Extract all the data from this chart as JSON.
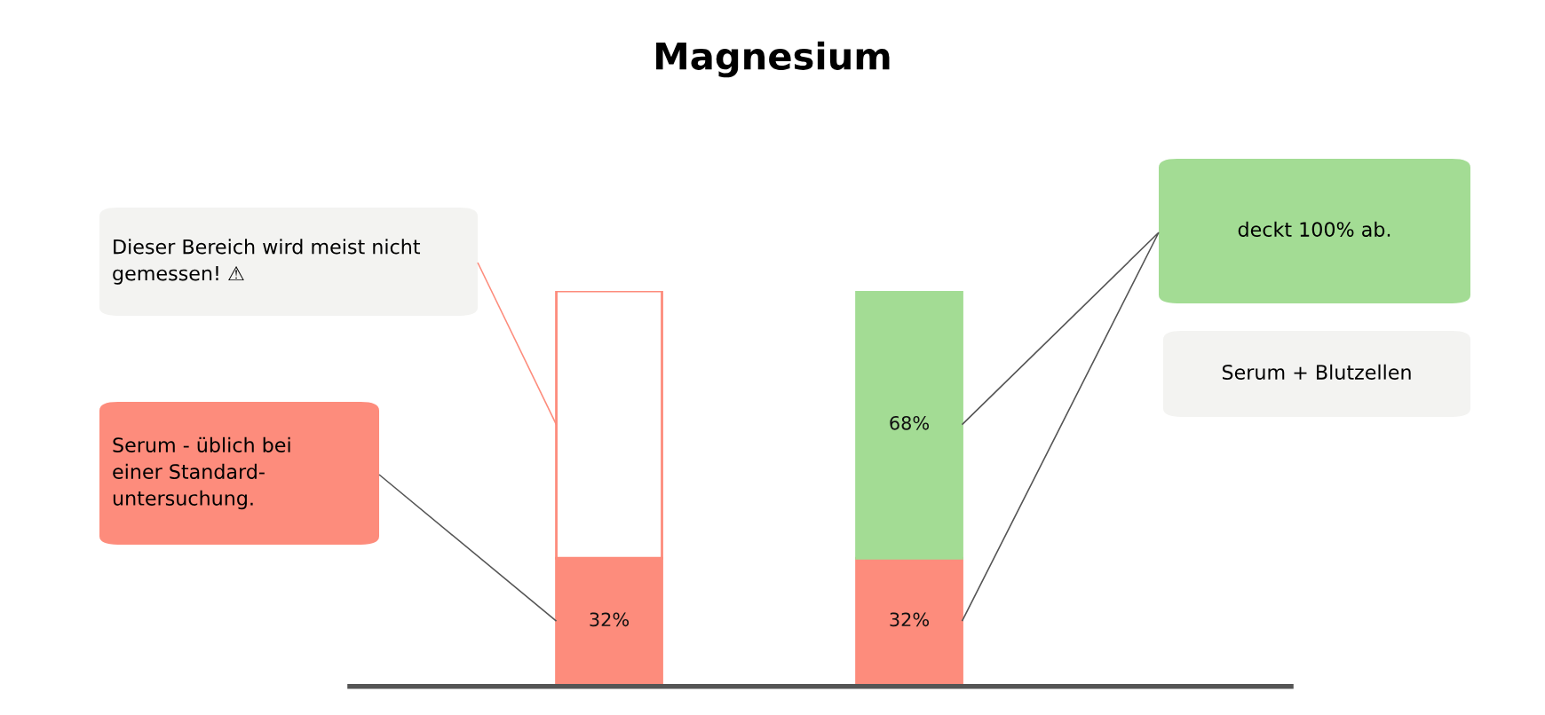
{
  "chart_data": {
    "type": "bar",
    "title": "Magnesium",
    "stacked": true,
    "categories": [
      null,
      null
    ],
    "series": [
      {
        "color": "#fd8c7c",
        "values": [
          32,
          32
        ],
        "value_labels": [
          "32%",
          "32%"
        ]
      },
      {
        "colors": [
          "#ffffff",
          "#a3dc94"
        ],
        "values": [
          68,
          68
        ],
        "value_labels": [
          null,
          "68%"
        ]
      }
    ],
    "annotations": [
      "Dieser Bereich wird meist nicht\ngemessen! ⚠",
      "Serum - üblich bei\neiner Standard-\nuntersuchung.",
      "deckt 100% ab.",
      "Serum + Blutzellen"
    ]
  }
}
